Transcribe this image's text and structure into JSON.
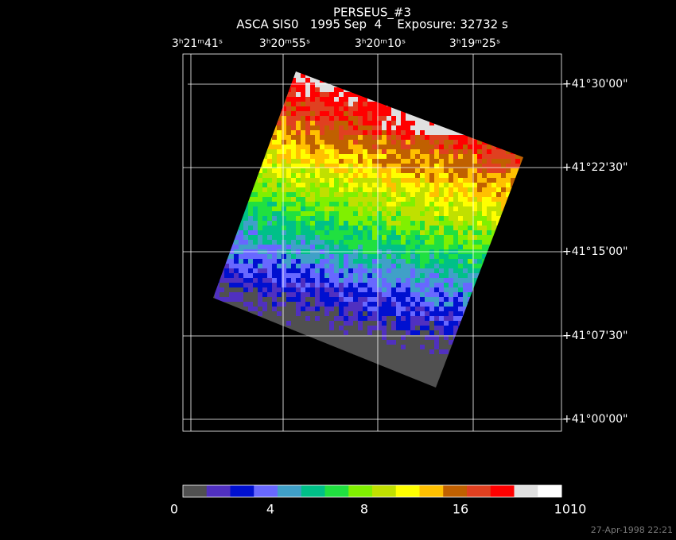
{
  "header": {
    "title": "PERSEUS_#3",
    "subtitle": "ASCA SIS0   1995 Sep  4    Exposure: 32732 s"
  },
  "ra_labels": [
    "3ʰ21ᵐ41ˢ",
    "3ʰ20ᵐ55ˢ",
    "3ʰ20ᵐ10ˢ",
    "3ʰ19ᵐ25ˢ"
  ],
  "dec_labels": [
    "+41°30'00\"",
    "+41°22'30\"",
    "+41°15'00\"",
    "+41°07'30\"",
    "+41°00'00\""
  ],
  "colorbar": {
    "colors": [
      "#505050",
      "#5030c0",
      "#0010d0",
      "#6868ff",
      "#40a0c8",
      "#00c088",
      "#20e040",
      "#80f000",
      "#c0e000",
      "#ffff00",
      "#ffc000",
      "#c06000",
      "#e04020",
      "#ff0000",
      "#e0e0e0",
      "#ffffff"
    ],
    "ticks": [
      0,
      4,
      8,
      16,
      1010
    ]
  },
  "footer": {
    "timestamp": "27-Apr-1998 22:21"
  }
}
